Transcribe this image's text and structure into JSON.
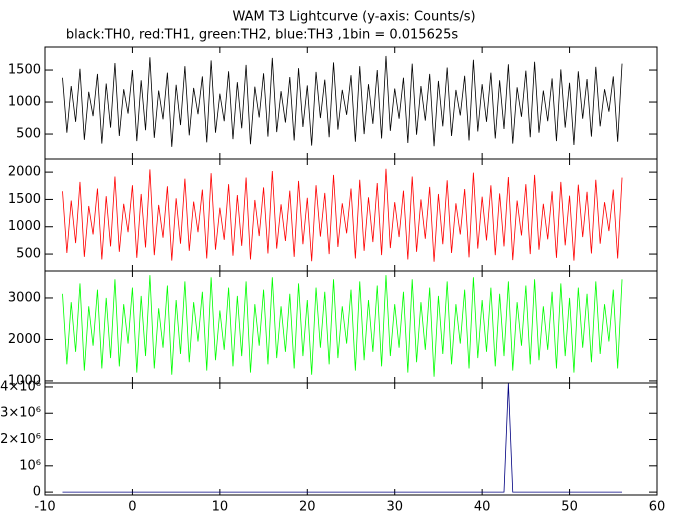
{
  "chart_data": {
    "type": "line",
    "title": "WAM T3 Lightcurve (y-axis: Counts/s)",
    "subtitle": "black:TH0, red:TH1, green:TH2, blue:TH3 ,1bin = 0.015625s",
    "xlim": [
      -10,
      60
    ],
    "xticks": [
      -10,
      0,
      10,
      20,
      30,
      40,
      50,
      60
    ],
    "x": [
      -8,
      -7.5,
      -7,
      -6.5,
      -6,
      -5.5,
      -5,
      -4.5,
      -4,
      -3.5,
      -3,
      -2.5,
      -2,
      -1.5,
      -1,
      -0.5,
      0,
      0.5,
      1,
      1.5,
      2,
      2.5,
      3,
      3.5,
      4,
      4.5,
      5,
      5.5,
      6,
      6.5,
      7,
      7.5,
      8,
      8.5,
      9,
      9.5,
      10,
      10.5,
      11,
      11.5,
      12,
      12.5,
      13,
      13.5,
      14,
      14.5,
      15,
      15.5,
      16,
      16.5,
      17,
      17.5,
      18,
      18.5,
      19,
      19.5,
      20,
      20.5,
      21,
      21.5,
      22,
      22.5,
      23,
      23.5,
      24,
      24.5,
      25,
      25.5,
      26,
      26.5,
      27,
      27.5,
      28,
      28.5,
      29,
      29.5,
      30,
      30.5,
      31,
      31.5,
      32,
      32.5,
      33,
      33.5,
      34,
      34.5,
      35,
      35.5,
      36,
      36.5,
      37,
      37.5,
      38,
      38.5,
      39,
      39.5,
      40,
      40.5,
      41,
      41.5,
      42,
      42.5,
      43,
      43.5,
      44,
      44.5,
      45,
      45.5,
      46,
      46.5,
      47,
      47.5,
      48,
      48.5,
      49,
      49.5,
      50,
      50.5,
      51,
      51.5,
      52,
      52.5,
      53,
      53.5,
      54,
      54.5,
      55,
      55.5,
      56
    ],
    "panels": [
      {
        "color": "#000000",
        "ylim": [
          110,
          1860
        ],
        "yticks": [
          500,
          1000,
          1500
        ],
        "values": [
          1380,
          520,
          1250,
          690,
          1520,
          410,
          1160,
          780,
          1440,
          350,
          1290,
          600,
          1610,
          470,
          1200,
          820,
          1500,
          390,
          1340,
          560,
          1700,
          440,
          1180,
          730,
          1460,
          300,
          1270,
          640,
          1560,
          480,
          1220,
          810,
          1400,
          370,
          1650,
          520,
          1130,
          700,
          1480,
          420,
          1310,
          590,
          1580,
          340,
          1240,
          760,
          1450,
          460,
          1690,
          530,
          1170,
          680,
          1390,
          400,
          1530,
          610,
          1260,
          320,
          1470,
          750,
          1350,
          450,
          1620,
          570,
          1190,
          800,
          1420,
          380,
          1560,
          500,
          1280,
          660,
          1500,
          430,
          1720,
          550,
          1210,
          740,
          1380,
          360,
          1600,
          490,
          1250,
          710,
          1440,
          310,
          1330,
          620,
          1540,
          470,
          1190,
          790,
          1410,
          400,
          1660,
          540,
          1280,
          690,
          1460,
          430,
          1340,
          580,
          1590,
          350,
          1230,
          770,
          1490,
          450,
          1630,
          520,
          1180,
          700,
          1370,
          390,
          1510,
          600,
          1300,
          330,
          1480,
          740,
          1360,
          460,
          1550,
          620,
          1200,
          850,
          1400,
          380,
          1600
        ]
      },
      {
        "color": "#ff0000",
        "ylim": [
          190,
          2240
        ],
        "yticks": [
          500,
          1000,
          1500,
          2000
        ],
        "values": [
          1650,
          520,
          1480,
          700,
          1820,
          450,
          1380,
          860,
          1700,
          400,
          1560,
          640,
          1920,
          540,
          1420,
          900,
          1760,
          430,
          1600,
          620,
          2050,
          480,
          1400,
          800,
          1740,
          380,
          1520,
          690,
          1880,
          560,
          1460,
          900,
          1680,
          420,
          1980,
          580,
          1350,
          760,
          1780,
          470,
          1580,
          650,
          1900,
          400,
          1490,
          830,
          1720,
          510,
          2020,
          600,
          1410,
          740,
          1660,
          450,
          1840,
          680,
          1530,
          370,
          1760,
          820,
          1620,
          500,
          1950,
          630,
          1430,
          880,
          1700,
          420,
          1860,
          560,
          1540,
          720,
          1800,
          480,
          2060,
          610,
          1450,
          810,
          1660,
          400,
          1920,
          540,
          1500,
          780,
          1730,
          360,
          1600,
          680,
          1850,
          520,
          1430,
          860,
          1690,
          440,
          1990,
          600,
          1550,
          750,
          1760,
          480,
          1610,
          640,
          1910,
          390,
          1480,
          840,
          1780,
          500,
          1950,
          580,
          1420,
          770,
          1650,
          430,
          1820,
          660,
          1570,
          380,
          1770,
          810,
          1640,
          510,
          1860,
          690,
          1450,
          920,
          1680,
          420,
          1900
        ]
      },
      {
        "color": "#00ff00",
        "ylim": [
          950,
          3650
        ],
        "yticks": [
          1000,
          2000,
          3000
        ],
        "values": [
          3100,
          1400,
          2900,
          1700,
          3350,
          1250,
          2800,
          1850,
          3200,
          1300,
          3000,
          1550,
          3450,
          1350,
          2850,
          1900,
          3250,
          1200,
          3050,
          1600,
          3550,
          1300,
          2750,
          1800,
          3300,
          1150,
          2950,
          1650,
          3400,
          1450,
          2900,
          1950,
          3150,
          1250,
          3500,
          1500,
          2700,
          1750,
          3250,
          1350,
          3050,
          1600,
          3400,
          1200,
          2850,
          1850,
          3200,
          1400,
          3500,
          1550,
          2800,
          1700,
          3100,
          1300,
          3350,
          1600,
          2950,
          1150,
          3250,
          1800,
          3150,
          1400,
          3450,
          1550,
          2800,
          1900,
          3200,
          1250,
          3400,
          1500,
          2950,
          1700,
          3300,
          1350,
          3550,
          1600,
          2850,
          1800,
          3150,
          1200,
          3450,
          1450,
          2900,
          1750,
          3250,
          1100,
          3050,
          1650,
          3400,
          1400,
          2850,
          1900,
          3200,
          1300,
          3500,
          1550,
          2950,
          1700,
          3250,
          1350,
          3100,
          1600,
          3400,
          1250,
          2900,
          1850,
          3300,
          1400,
          3450,
          1500,
          2800,
          1750,
          3150,
          1300,
          3350,
          1600,
          3000,
          1200,
          3250,
          1800,
          3100,
          1450,
          3400,
          1650,
          2850,
          1950,
          3200,
          1300,
          3450
        ]
      },
      {
        "color": "#000080",
        "ylim": [
          -110000,
          4150000
        ],
        "yticks": [
          0,
          {
            "value": 1000000,
            "label": "10⁶"
          },
          {
            "value": 2000000,
            "label": "2×10⁶"
          },
          {
            "value": 3000000,
            "label": "3×10⁶"
          },
          {
            "value": 4000000,
            "label": "4×10⁶"
          }
        ],
        "values": [
          0,
          0,
          0,
          0,
          0,
          0,
          0,
          0,
          0,
          0,
          0,
          0,
          0,
          0,
          0,
          0,
          0,
          0,
          0,
          0,
          0,
          0,
          0,
          0,
          0,
          0,
          0,
          0,
          0,
          0,
          0,
          0,
          0,
          0,
          0,
          0,
          0,
          0,
          0,
          0,
          0,
          0,
          0,
          0,
          0,
          0,
          0,
          0,
          0,
          0,
          0,
          0,
          0,
          0,
          0,
          0,
          0,
          0,
          0,
          0,
          0,
          0,
          0,
          0,
          0,
          0,
          0,
          0,
          0,
          0,
          0,
          0,
          0,
          0,
          0,
          0,
          0,
          0,
          0,
          0,
          0,
          0,
          0,
          0,
          0,
          0,
          0,
          0,
          0,
          0,
          0,
          0,
          0,
          0,
          0,
          0,
          0,
          0,
          0,
          0,
          0,
          0,
          4150000,
          0,
          0,
          0,
          0,
          0,
          0,
          0,
          0,
          0,
          0,
          0,
          0,
          0,
          0,
          0,
          0,
          0,
          0,
          0,
          0,
          0,
          0,
          0,
          0,
          0,
          0
        ]
      }
    ]
  }
}
